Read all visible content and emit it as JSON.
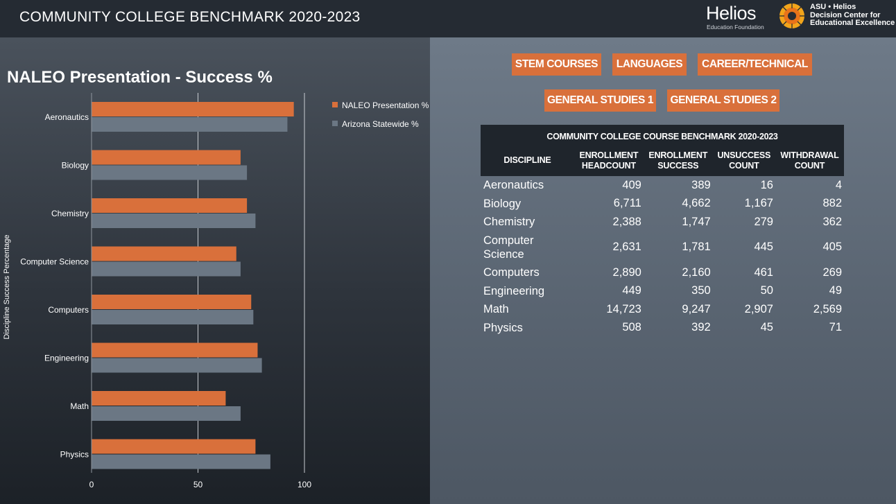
{
  "header": {
    "title": "COMMUNITY COLLEGE BENCHMARK 2020-2023",
    "helios_logo_word": "Helios",
    "helios_logo_sub": "Education Foundation",
    "asu_logo_lines": [
      "ASU • Helios",
      "Decision Center for",
      "Educational Excellence"
    ]
  },
  "chart_title": "NALEO Presentation - Success %",
  "chart_data": {
    "type": "bar",
    "orientation": "horizontal",
    "categories": [
      "Aeronautics",
      "Biology",
      "Chemistry",
      "Computer Science",
      "Computers",
      "Engineering",
      "Math",
      "Physics"
    ],
    "series": [
      {
        "name": "NALEO Presentation %",
        "color": "#d9703b",
        "values": [
          95,
          70,
          73,
          68,
          75,
          78,
          63,
          77
        ]
      },
      {
        "name": "Arizona Statewide %",
        "color": "#6b7784",
        "values": [
          92,
          73,
          77,
          70,
          76,
          80,
          70,
          84
        ]
      }
    ],
    "xlim": [
      0,
      100
    ],
    "xticks": [
      "0",
      "50",
      "100"
    ],
    "xlabel": "",
    "ylabel": "Discipline Success Percentage",
    "grid": true,
    "legend_position": "top-right"
  },
  "tabs": [
    {
      "label": "STEM COURSES"
    },
    {
      "label": "LANGUAGES"
    },
    {
      "label": "CAREER/TECHNICAL"
    },
    {
      "label": "GENERAL STUDIES 1"
    },
    {
      "label": "GENERAL STUDIES 2"
    }
  ],
  "table": {
    "caption": "COMMUNITY COLLEGE COURSE BENCHMARK 2020-2023",
    "headers": [
      [
        "DISCIPLINE"
      ],
      [
        "ENROLLMENT",
        "HEADCOUNT"
      ],
      [
        "ENROLLMENT",
        "SUCCESS"
      ],
      [
        "UNSUCCESS",
        "COUNT"
      ],
      [
        "WITHDRAWAL",
        "COUNT"
      ]
    ],
    "rows": [
      {
        "discipline": "Aeronautics",
        "headcount": "409",
        "success": "389",
        "unsuccess": "16",
        "withdrawal": "4"
      },
      {
        "discipline": "Biology",
        "headcount": "6,711",
        "success": "4,662",
        "unsuccess": "1,167",
        "withdrawal": "882"
      },
      {
        "discipline": "Chemistry",
        "headcount": "2,388",
        "success": "1,747",
        "unsuccess": "279",
        "withdrawal": "362"
      },
      {
        "discipline": "Computer Science",
        "headcount": "2,631",
        "success": "1,781",
        "unsuccess": "445",
        "withdrawal": "405"
      },
      {
        "discipline": "Computers",
        "headcount": "2,890",
        "success": "2,160",
        "unsuccess": "461",
        "withdrawal": "269"
      },
      {
        "discipline": "Engineering",
        "headcount": "449",
        "success": "350",
        "unsuccess": "50",
        "withdrawal": "49"
      },
      {
        "discipline": "Math",
        "headcount": "14,723",
        "success": "9,247",
        "unsuccess": "2,907",
        "withdrawal": "2,569"
      },
      {
        "discipline": "Physics",
        "headcount": "508",
        "success": "392",
        "unsuccess": "45",
        "withdrawal": "71"
      }
    ]
  }
}
